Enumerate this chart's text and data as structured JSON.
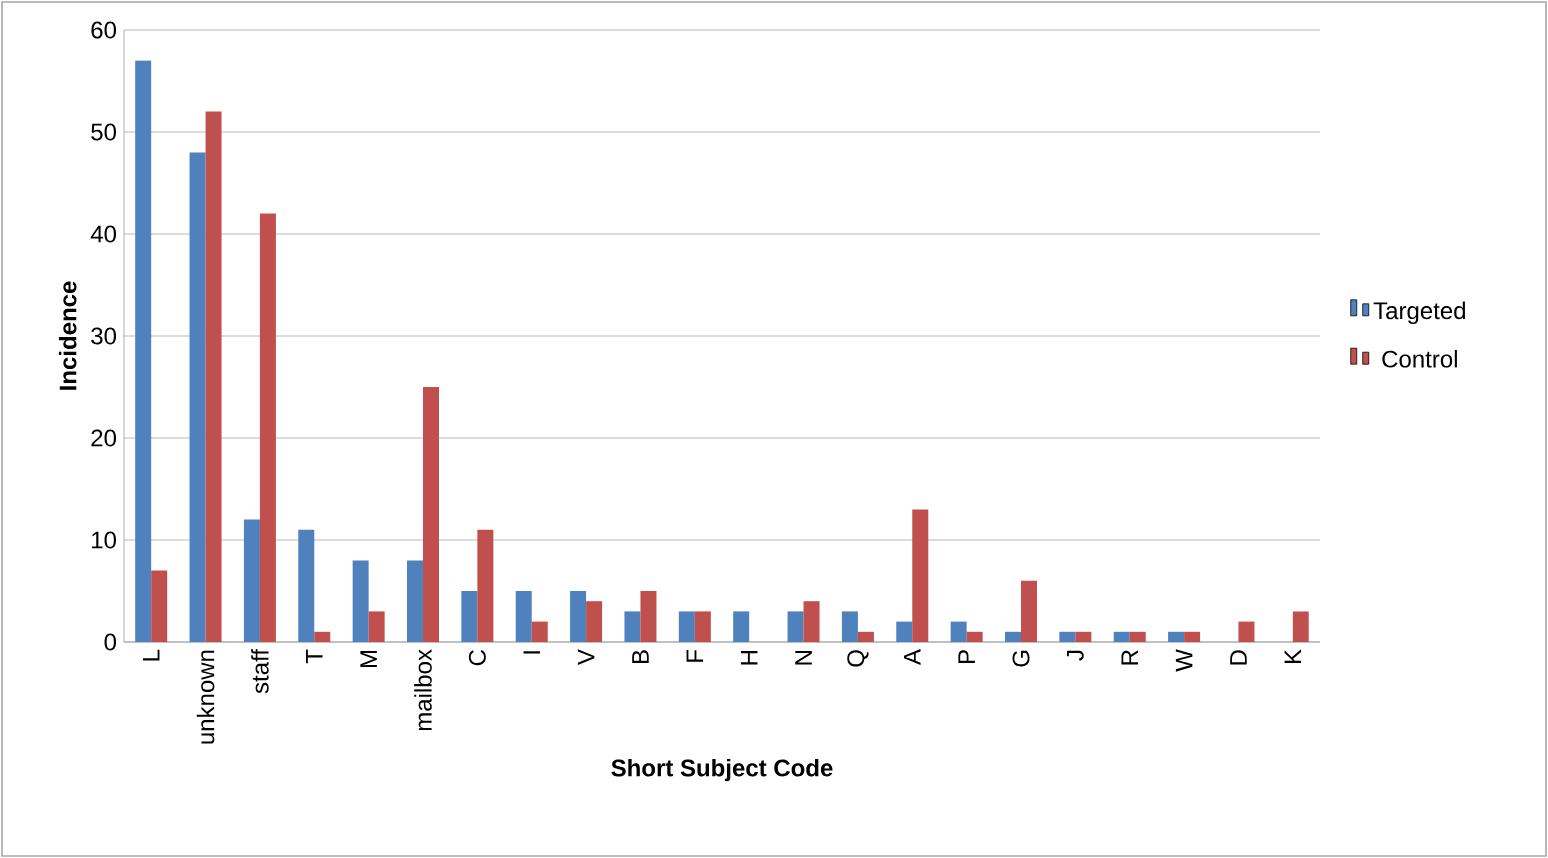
{
  "chart_data": {
    "type": "bar",
    "xlabel": "Short Subject Code",
    "ylabel": "Incidence",
    "categories": [
      "L",
      "unknown",
      "staff",
      "T",
      "M",
      "mailbox",
      "C",
      "I",
      "V",
      "B",
      "F",
      "H",
      "N",
      "Q",
      "A",
      "P",
      "G",
      "J",
      "R",
      "W",
      "D",
      "K"
    ],
    "series": [
      {
        "name": "Targeted",
        "color": "#4f81bd",
        "values": [
          57,
          48,
          12,
          11,
          8,
          8,
          5,
          5,
          5,
          3,
          3,
          3,
          3,
          3,
          2,
          2,
          1,
          1,
          1,
          1,
          0,
          0
        ]
      },
      {
        "name": "Control",
        "color": "#c0504d",
        "values": [
          7,
          52,
          42,
          1,
          3,
          25,
          11,
          2,
          4,
          5,
          3,
          0,
          4,
          1,
          13,
          1,
          6,
          1,
          1,
          1,
          2,
          3
        ]
      }
    ],
    "ylim": [
      0,
      60
    ],
    "yticks": [
      0,
      10,
      20,
      30,
      40,
      50,
      60
    ],
    "grid": "y",
    "legend": "right"
  }
}
